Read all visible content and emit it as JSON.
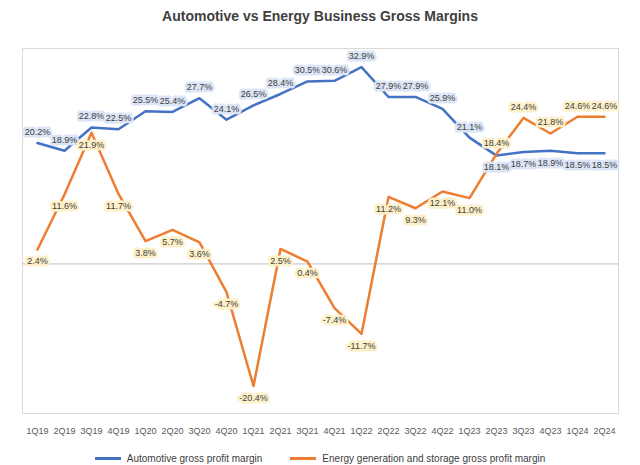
{
  "chart_data": {
    "type": "line",
    "title": "Automotive vs Energy Business Gross Margins",
    "categories": [
      "1Q19",
      "2Q19",
      "3Q19",
      "4Q19",
      "1Q20",
      "2Q20",
      "3Q20",
      "4Q20",
      "1Q21",
      "2Q21",
      "3Q21",
      "4Q21",
      "1Q22",
      "2Q22",
      "3Q22",
      "4Q22",
      "1Q23",
      "2Q23",
      "3Q23",
      "4Q23",
      "1Q24",
      "2Q24"
    ],
    "series": [
      {
        "name": "Automotive gross profit margin",
        "color": "#4472c4",
        "values": [
          20.2,
          18.9,
          22.8,
          22.5,
          25.5,
          25.4,
          27.7,
          24.1,
          26.5,
          28.4,
          30.5,
          30.6,
          32.9,
          27.9,
          27.9,
          25.9,
          21.1,
          18.1,
          18.7,
          18.9,
          18.5,
          18.5
        ],
        "value_labels": [
          "20.2%",
          "18.9%",
          "22.8%",
          "22.5%",
          "25.5%",
          "25.4%",
          "27.7%",
          "24.1%",
          "26.5%",
          "28.4%",
          "30.5%",
          "30.6%",
          "32.9%",
          "27.9%",
          "27.9%",
          "25.9%",
          "21.1%",
          "18.1%",
          "18.7%",
          "18.9%",
          "18.5%",
          "18.5%"
        ]
      },
      {
        "name": "Energy generation and storage gross profit margin",
        "color": "#ed7d31",
        "values": [
          2.4,
          11.6,
          21.9,
          11.7,
          3.8,
          5.7,
          3.6,
          -4.7,
          -20.4,
          2.5,
          0.4,
          -7.4,
          -11.7,
          11.2,
          9.3,
          12.1,
          11.0,
          18.4,
          24.4,
          21.8,
          24.6,
          24.6
        ],
        "value_labels": [
          "2.4%",
          "11.6%",
          "21.9%",
          "11.7%",
          "3.8%",
          "5.7%",
          "3.6%",
          "-4.7%",
          "-20.4%",
          "2.5%",
          "0.4%",
          "-7.4%",
          "-11.7%",
          "11.2%",
          "9.3%",
          "12.1%",
          "11.0%",
          "18.4%",
          "24.4%",
          "21.8%",
          "24.6%",
          "24.6%"
        ]
      }
    ],
    "ylim": [
      -25,
      36
    ],
    "yticks": [
      0
    ],
    "grid": true,
    "tick_labels": "x",
    "data_labels": true,
    "legend": "bottom"
  }
}
